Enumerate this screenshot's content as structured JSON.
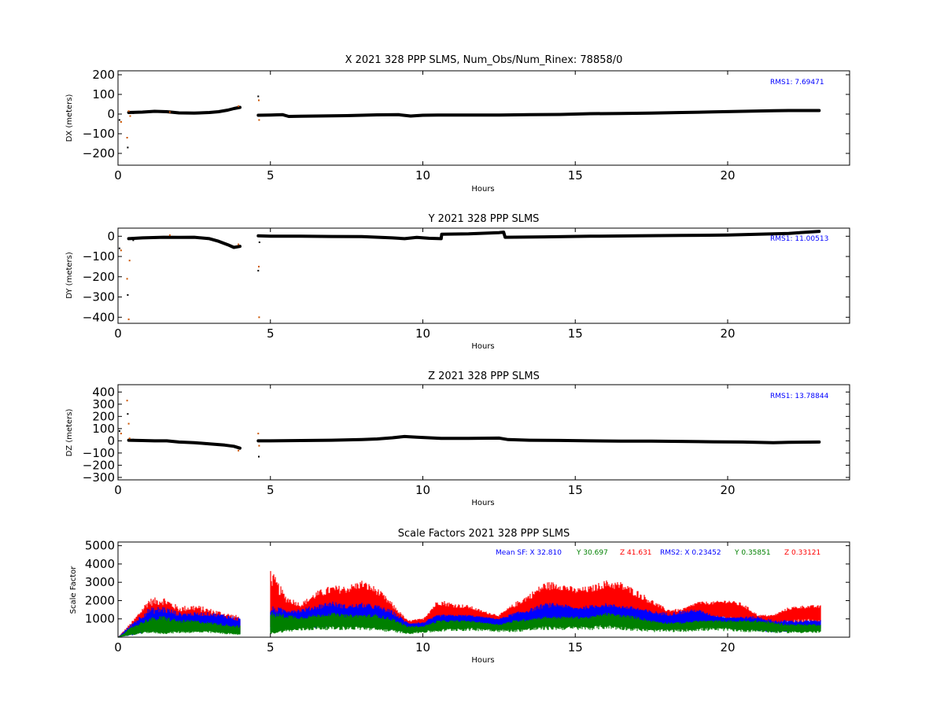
{
  "chart_data": [
    {
      "type": "scatter",
      "title": "X 2021 328 PPP  SLMS, Num_Obs/Num_Rinex: 78858/0",
      "xlabel": "Hours",
      "ylabel": "DX (meters)",
      "xlim": [
        0,
        24
      ],
      "ylim": [
        -260,
        220
      ],
      "xticks": [
        0,
        5,
        10,
        15,
        20
      ],
      "yticks": [
        200,
        100,
        0,
        -100,
        -200
      ],
      "ytick_labels": [
        "200",
        "100",
        "0",
        "−100",
        "−200"
      ],
      "rms_label": "RMS1:  7.69471",
      "rms_color": "#0000ff",
      "marker_colors": {
        "main": "#000000",
        "outlier": "#cc5500"
      },
      "segments": [
        {
          "x": [
            0.35,
            0.8,
            1.2,
            1.6,
            2.0,
            2.5,
            3.0,
            3.3,
            3.6,
            3.8,
            4.0
          ],
          "y": [
            8,
            10,
            14,
            12,
            6,
            5,
            8,
            12,
            20,
            28,
            34
          ]
        },
        {
          "x": [
            4.6,
            5.0,
            5.4,
            5.6,
            6.5,
            7.5,
            8.5,
            9.2,
            9.6,
            10.0,
            10.5,
            11.5,
            12.5,
            13.5,
            14.5,
            15.5,
            16.5,
            17.5,
            18.5,
            19.5,
            20.5,
            21.5,
            22.0,
            23.0
          ],
          "y": [
            -6,
            -5,
            -3,
            -12,
            -10,
            -8,
            -4,
            -3,
            -10,
            -6,
            -5,
            -5,
            -5,
            -3,
            -2,
            2,
            3,
            5,
            8,
            11,
            14,
            17,
            18,
            18
          ]
        }
      ],
      "outliers": {
        "x": [
          0.05,
          0.1,
          0.3,
          0.32,
          0.35,
          0.4,
          0.5,
          1.7,
          3.95,
          4.6,
          4.62,
          4.63
        ],
        "y": [
          -30,
          -40,
          -120,
          -170,
          15,
          -10,
          5,
          10,
          40,
          90,
          70,
          -30
        ]
      }
    },
    {
      "type": "scatter",
      "title": "Y 2021 328 PPP  SLMS",
      "xlabel": "Hours",
      "ylabel": "DY (meters)",
      "xlim": [
        0,
        24
      ],
      "ylim": [
        -430,
        40
      ],
      "xticks": [
        0,
        5,
        10,
        15,
        20
      ],
      "yticks": [
        0,
        -100,
        -200,
        -300,
        -400
      ],
      "ytick_labels": [
        "0",
        "−100",
        "−200",
        "−300",
        "−400"
      ],
      "rms_label": "RMS1: 11.00513",
      "rms_color": "#0000ff",
      "marker_colors": {
        "main": "#000000",
        "outlier": "#cc5500"
      },
      "segments": [
        {
          "x": [
            0.35,
            0.8,
            1.5,
            2.0,
            2.5,
            3.0,
            3.3,
            3.6,
            3.8,
            4.0
          ],
          "y": [
            -12,
            -8,
            -5,
            -6,
            -5,
            -12,
            -25,
            -42,
            -55,
            -50
          ]
        },
        {
          "x": [
            4.6,
            5.0,
            6.0,
            7.0,
            8.0,
            9.0,
            9.4,
            9.8,
            10.2,
            10.6,
            10.62,
            11.5,
            12.5,
            12.65,
            12.7,
            14.0,
            15.5,
            17.0,
            18.5,
            20.0,
            21.0,
            22.0,
            23.0
          ],
          "y": [
            2,
            0,
            0,
            -1,
            -2,
            -8,
            -12,
            -6,
            -10,
            -12,
            10,
            12,
            18,
            20,
            -5,
            -3,
            0,
            2,
            4,
            6,
            10,
            14,
            24
          ]
        }
      ],
      "outliers": {
        "x": [
          0.05,
          0.1,
          0.3,
          0.32,
          0.35,
          0.38,
          0.5,
          1.7,
          3.95,
          4.6,
          4.62,
          4.63,
          4.64
        ],
        "y": [
          -60,
          -70,
          -210,
          -290,
          -410,
          -120,
          -20,
          5,
          -40,
          -170,
          -150,
          -400,
          -30
        ]
      }
    },
    {
      "type": "scatter",
      "title": "Z 2021 328 PPP  SLMS",
      "xlabel": "Hours",
      "ylabel": "DZ (meters)",
      "xlim": [
        0,
        24
      ],
      "ylim": [
        -320,
        460
      ],
      "xticks": [
        0,
        5,
        10,
        15,
        20
      ],
      "yticks": [
        400,
        300,
        200,
        100,
        0,
        -100,
        -200,
        -300
      ],
      "ytick_labels": [
        "400",
        "300",
        "200",
        "100",
        "0",
        "−100",
        "−200",
        "−300"
      ],
      "rms_label": "RMS1: 13.78844",
      "rms_color": "#0000ff",
      "marker_colors": {
        "main": "#000000",
        "outlier": "#cc5500"
      },
      "segments": [
        {
          "x": [
            0.35,
            0.8,
            1.2,
            1.6,
            2.0,
            2.5,
            3.0,
            3.5,
            3.8,
            4.0
          ],
          "y": [
            5,
            2,
            0,
            0,
            -10,
            -15,
            -25,
            -35,
            -45,
            -60
          ]
        },
        {
          "x": [
            4.6,
            5.0,
            6.0,
            7.0,
            8.0,
            8.5,
            9.0,
            9.4,
            9.8,
            10.2,
            10.6,
            11.5,
            12.5,
            12.8,
            13.5,
            14.5,
            15.5,
            16.5,
            17.5,
            18.5,
            19.5,
            20.5,
            21.5,
            22.0,
            23.0
          ],
          "y": [
            0,
            0,
            2,
            5,
            10,
            15,
            25,
            35,
            30,
            25,
            20,
            20,
            22,
            10,
            5,
            3,
            0,
            -2,
            -3,
            -5,
            -8,
            -10,
            -15,
            -12,
            -10
          ]
        }
      ],
      "outliers": {
        "x": [
          0.05,
          0.1,
          0.3,
          0.32,
          0.35,
          0.38,
          0.5,
          3.95,
          4.6,
          4.62,
          4.63
        ],
        "y": [
          80,
          60,
          330,
          220,
          140,
          20,
          10,
          -80,
          60,
          -130,
          -40
        ]
      }
    },
    {
      "type": "line",
      "title": "Scale Factors 2021 328 PPP  SLMS",
      "xlabel": "Hours",
      "ylabel": "Scale Factor",
      "xlim": [
        0,
        24
      ],
      "ylim": [
        0,
        5200
      ],
      "xticks": [
        0,
        5,
        10,
        15,
        20
      ],
      "yticks": [
        5000,
        4000,
        3000,
        2000,
        1000
      ],
      "legend": [
        {
          "text": "Mean SF: X  32.810",
          "color": "#0000ff"
        },
        {
          "text": "Y  30.697",
          "color": "#008000"
        },
        {
          "text": "Z  41.631",
          "color": "#ff0000"
        },
        {
          "text": "RMS2: X  0.23452",
          "color": "#0000ff"
        },
        {
          "text": "Y  0.35851",
          "color": "#008000"
        },
        {
          "text": "Z  0.33121",
          "color": "#ff0000"
        }
      ],
      "x": [
        0.0,
        0.5,
        1.0,
        1.5,
        2.0,
        2.5,
        3.0,
        3.5,
        4.0,
        4.5,
        5.0,
        5.5,
        6.0,
        6.5,
        7.0,
        7.5,
        8.0,
        8.5,
        9.0,
        9.5,
        10.0,
        10.5,
        11.0,
        11.5,
        12.0,
        12.5,
        13.0,
        13.5,
        14.0,
        14.5,
        15.0,
        15.5,
        16.0,
        16.5,
        17.0,
        17.5,
        18.0,
        18.5,
        19.0,
        19.5,
        20.0,
        20.5,
        21.0,
        21.5,
        22.0,
        22.5,
        23.0
      ],
      "gaps": [
        [
          4.1,
          4.5
        ]
      ],
      "series": [
        {
          "color": "#ff0000",
          "low": [
            0,
            300,
            800,
            700,
            700,
            600,
            600,
            500,
            400,
            null,
            800,
            1000,
            1100,
            1200,
            1300,
            1500,
            1600,
            1400,
            900,
            600,
            700,
            1000,
            1100,
            1100,
            1000,
            900,
            1000,
            1300,
            1500,
            1600,
            1600,
            1600,
            1700,
            1500,
            1300,
            1100,
            1000,
            1000,
            1400,
            1400,
            1400,
            1100,
            900,
            900,
            1100,
            1200,
            1200
          ],
          "high": [
            0,
            900,
            2000,
            2100,
            1600,
            1700,
            1500,
            1300,
            1100,
            null,
            3500,
            2200,
            1800,
            2400,
            2700,
            2700,
            3000,
            2600,
            1800,
            900,
            1000,
            2000,
            1800,
            1700,
            1400,
            1200,
            1800,
            2300,
            2900,
            2900,
            2600,
            2700,
            3000,
            2900,
            2500,
            2000,
            1500,
            1500,
            1900,
            1900,
            2000,
            1800,
            1200,
            1200,
            1600,
            1700,
            1700
          ]
        },
        {
          "color": "#0000ff",
          "low": [
            0,
            200,
            500,
            400,
            600,
            700,
            700,
            500,
            300,
            null,
            500,
            700,
            800,
            900,
            1000,
            1000,
            1000,
            900,
            700,
            400,
            500,
            800,
            900,
            900,
            900,
            800,
            800,
            900,
            1000,
            1100,
            1100,
            1100,
            1200,
            1100,
            1000,
            800,
            700,
            800,
            1000,
            900,
            800,
            700,
            600,
            400,
            500,
            500,
            600
          ],
          "high": [
            0,
            800,
            1500,
            1600,
            1300,
            1300,
            1300,
            1200,
            1000,
            null,
            1600,
            1500,
            1500,
            1700,
            1900,
            1700,
            1800,
            1700,
            1400,
            800,
            800,
            1200,
            1200,
            1200,
            1100,
            1000,
            1300,
            1500,
            1800,
            1800,
            1600,
            1700,
            1800,
            1700,
            1600,
            1400,
            1300,
            1400,
            1500,
            1200,
            1100,
            1100,
            1100,
            900,
            900,
            900,
            900
          ]
        },
        {
          "color": "#008000",
          "low": [
            0,
            200,
            400,
            300,
            400,
            400,
            400,
            300,
            200,
            null,
            300,
            500,
            600,
            700,
            700,
            700,
            700,
            600,
            500,
            300,
            400,
            500,
            600,
            600,
            600,
            500,
            500,
            600,
            700,
            700,
            700,
            700,
            800,
            700,
            600,
            500,
            500,
            500,
            600,
            600,
            600,
            500,
            500,
            400,
            400,
            400,
            400
          ],
          "high": [
            0,
            600,
            1000,
            1100,
            900,
            900,
            800,
            700,
            600,
            null,
            1300,
            1200,
            1100,
            1200,
            1300,
            1200,
            1200,
            1200,
            1000,
            600,
            600,
            900,
            900,
            900,
            800,
            700,
            900,
            1000,
            1100,
            1100,
            1100,
            1100,
            1300,
            1200,
            1100,
            900,
            800,
            800,
            900,
            900,
            900,
            900,
            900,
            800,
            700,
            700,
            700
          ]
        }
      ]
    }
  ]
}
